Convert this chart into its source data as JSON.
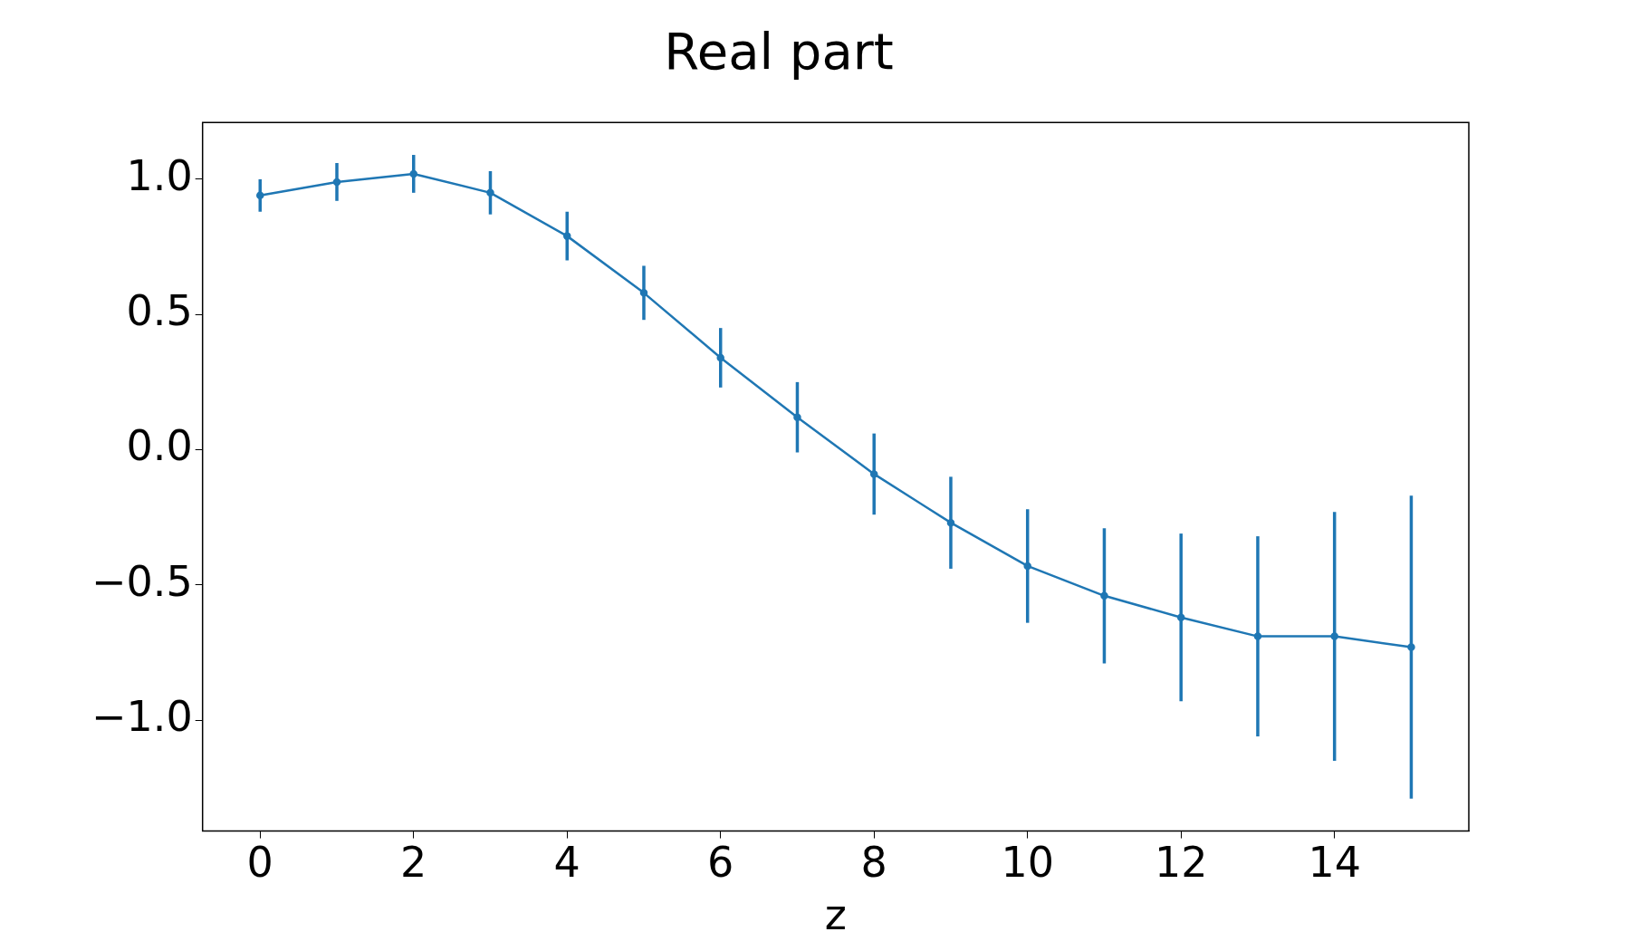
{
  "chart_data": {
    "type": "line",
    "title": "Real part",
    "xlabel": "z",
    "x": [
      0,
      1,
      2,
      3,
      4,
      5,
      6,
      7,
      8,
      9,
      10,
      11,
      12,
      13,
      14,
      15
    ],
    "series": [
      {
        "color": "#1f77b4",
        "values": [
          0.94,
          0.99,
          1.02,
          0.95,
          0.79,
          0.58,
          0.34,
          0.12,
          -0.09,
          -0.27,
          -0.43,
          -0.54,
          -0.62,
          -0.69,
          -0.69,
          -0.73
        ],
        "errors": [
          0.06,
          0.07,
          0.07,
          0.08,
          0.09,
          0.1,
          0.11,
          0.13,
          0.15,
          0.17,
          0.21,
          0.25,
          0.31,
          0.37,
          0.46,
          0.56
        ]
      }
    ],
    "xlim": [
      -0.75,
      15.75
    ],
    "xticks": [
      0,
      2,
      4,
      6,
      8,
      10,
      12,
      14
    ],
    "ylim": [
      -1.41,
      1.21
    ],
    "yticks": [
      {
        "value": -1,
        "label": "−1.0"
      },
      {
        "value": -0.5,
        "label": "−0.5"
      },
      {
        "value": 0,
        "label": "0.0"
      },
      {
        "value": 0.5,
        "label": "0.5"
      },
      {
        "value": 1,
        "label": "1.0"
      }
    ],
    "grid": false,
    "legend": false,
    "marker": "circle",
    "line_style": "solid"
  }
}
